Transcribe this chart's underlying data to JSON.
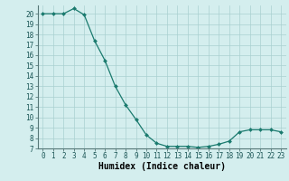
{
  "x": [
    0,
    1,
    2,
    3,
    4,
    5,
    6,
    7,
    8,
    9,
    10,
    11,
    12,
    13,
    14,
    15,
    16,
    17,
    18,
    19,
    20,
    21,
    22,
    23
  ],
  "y": [
    20,
    20,
    20,
    20.5,
    19.9,
    17.4,
    15.5,
    13.0,
    11.2,
    9.8,
    8.3,
    7.5,
    7.2,
    7.2,
    7.2,
    7.1,
    7.2,
    7.4,
    7.7,
    8.6,
    8.8,
    8.8,
    8.8,
    8.6
  ],
  "line_color": "#1a7a6e",
  "marker": "D",
  "marker_size": 2.0,
  "bg_color": "#d4eeee",
  "grid_color": "#aad0d0",
  "xlabel": "Humidex (Indice chaleur)",
  "xlim": [
    -0.5,
    23.5
  ],
  "ylim": [
    7,
    20.8
  ],
  "xticks": [
    0,
    1,
    2,
    3,
    4,
    5,
    6,
    7,
    8,
    9,
    10,
    11,
    12,
    13,
    14,
    15,
    16,
    17,
    18,
    19,
    20,
    21,
    22,
    23
  ],
  "yticks": [
    7,
    8,
    9,
    10,
    11,
    12,
    13,
    14,
    15,
    16,
    17,
    18,
    19,
    20
  ],
  "xlabel_fontsize": 7,
  "tick_fontsize": 5.5
}
